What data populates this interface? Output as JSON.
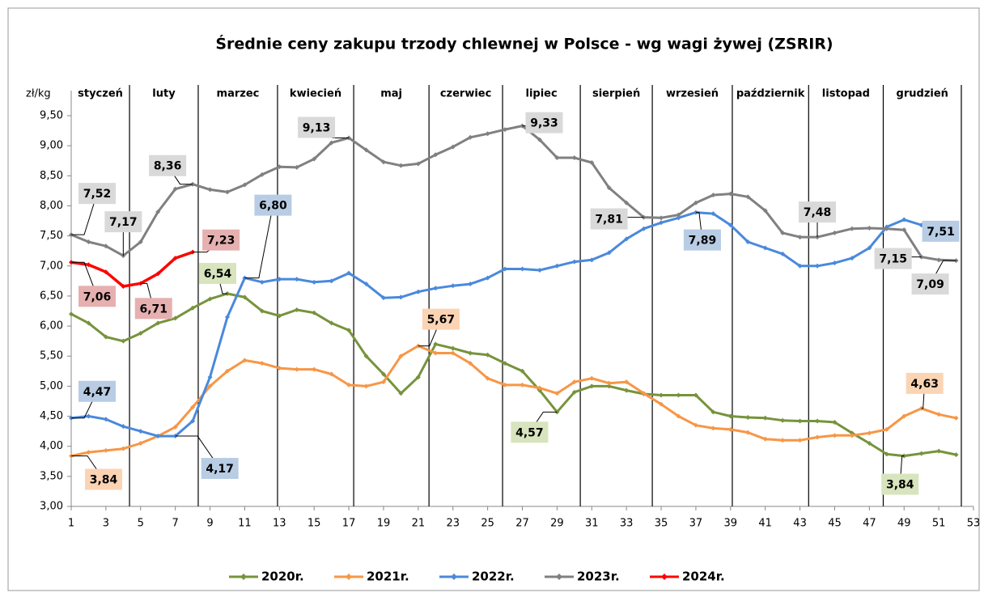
{
  "chart_data": {
    "type": "line",
    "title": "Średnie ceny zakupu trzody chlewnej w Polsce - wg wagi żywej (ZSRIR)",
    "y_label": "zł/kg",
    "months": [
      "styczeń",
      "luty",
      "marzec",
      "kwiecień",
      "maj",
      "czerwiec",
      "lipiec",
      "sierpień",
      "wrzesień",
      "październik",
      "listopad",
      "grudzień"
    ],
    "month_dividers": [
      4.36,
      8.32,
      12.89,
      17.28,
      21.62,
      25.86,
      30.34,
      34.49,
      39.1,
      43.5,
      47.8,
      52.3
    ],
    "x": [
      1,
      2,
      3,
      4,
      5,
      6,
      7,
      8,
      9,
      10,
      11,
      12,
      13,
      14,
      15,
      16,
      17,
      18,
      19,
      20,
      21,
      22,
      23,
      24,
      25,
      26,
      27,
      28,
      29,
      30,
      31,
      32,
      33,
      34,
      35,
      36,
      37,
      38,
      39,
      40,
      41,
      42,
      43,
      44,
      45,
      46,
      47,
      48,
      49,
      50,
      51,
      52
    ],
    "xlim": [
      1,
      53
    ],
    "xticks": [
      1,
      3,
      5,
      7,
      9,
      11,
      13,
      15,
      17,
      19,
      21,
      23,
      25,
      27,
      29,
      31,
      33,
      35,
      37,
      39,
      41,
      43,
      45,
      47,
      49,
      51,
      53
    ],
    "ylim": [
      3,
      9.5
    ],
    "yticks": [
      {
        "value": 3,
        "label": "3,00"
      },
      {
        "value": 3.5,
        "label": "3,50"
      },
      {
        "value": 4,
        "label": "4,00"
      },
      {
        "value": 4.5,
        "label": "4,50"
      },
      {
        "value": 5,
        "label": "5,00"
      },
      {
        "value": 5.5,
        "label": "5,50"
      },
      {
        "value": 6,
        "label": "6,00"
      },
      {
        "value": 6.5,
        "label": "6,50"
      },
      {
        "value": 7,
        "label": "7,00"
      },
      {
        "value": 7.5,
        "label": "7,50"
      },
      {
        "value": 8,
        "label": "8,00"
      },
      {
        "value": 8.5,
        "label": "8,50"
      },
      {
        "value": 9,
        "label": "9,00"
      },
      {
        "value": 9.5,
        "label": "9,50"
      }
    ],
    "legend": "bottom",
    "series": [
      {
        "name": "2020r.",
        "color": "#77933c",
        "label_bg": "#d7e4bd",
        "values": [
          6.2,
          6.05,
          5.82,
          5.75,
          5.88,
          6.05,
          6.13,
          6.3,
          6.45,
          6.54,
          6.48,
          6.25,
          6.17,
          6.27,
          6.22,
          6.05,
          5.93,
          5.5,
          5.2,
          4.88,
          5.15,
          5.7,
          5.63,
          5.55,
          5.52,
          5.38,
          5.25,
          4.93,
          4.57,
          4.9,
          5.0,
          5.0,
          4.93,
          4.87,
          4.85,
          4.85,
          4.85,
          4.57,
          4.5,
          4.48,
          4.47,
          4.43,
          4.42,
          4.42,
          4.4,
          4.22,
          4.05,
          3.87,
          3.84,
          3.88,
          3.92,
          3.86
        ],
        "value_labels": [
          null,
          null,
          null,
          null,
          null,
          null,
          null,
          null,
          null,
          "6,54",
          null,
          null,
          null,
          null,
          null,
          null,
          null,
          null,
          null,
          null,
          null,
          null,
          null,
          null,
          null,
          null,
          null,
          null,
          "4,57",
          null,
          null,
          null,
          null,
          null,
          null,
          null,
          null,
          null,
          null,
          null,
          null,
          null,
          null,
          null,
          null,
          null,
          null,
          null,
          "3,84",
          null,
          null,
          null
        ]
      },
      {
        "name": "2021r.",
        "color": "#f79646",
        "label_bg": "#fbd4b4",
        "values": [
          3.84,
          3.9,
          3.93,
          3.96,
          4.05,
          4.17,
          4.32,
          4.65,
          5.0,
          5.25,
          5.43,
          5.38,
          5.3,
          5.28,
          5.28,
          5.2,
          5.02,
          5.0,
          5.07,
          5.5,
          5.67,
          5.55,
          5.55,
          5.38,
          5.13,
          5.02,
          5.02,
          4.97,
          4.88,
          5.07,
          5.13,
          5.05,
          5.07,
          4.88,
          4.7,
          4.5,
          4.35,
          4.3,
          4.28,
          4.23,
          4.12,
          4.1,
          4.1,
          4.15,
          4.18,
          4.18,
          4.22,
          4.28,
          4.5,
          4.63,
          4.53,
          4.47
        ],
        "value_labels": [
          "3,84",
          null,
          null,
          null,
          null,
          null,
          null,
          null,
          null,
          null,
          null,
          null,
          null,
          null,
          null,
          null,
          null,
          null,
          null,
          null,
          "5,67",
          null,
          null,
          null,
          null,
          null,
          null,
          null,
          null,
          null,
          null,
          null,
          null,
          null,
          null,
          null,
          null,
          null,
          null,
          null,
          null,
          null,
          null,
          null,
          null,
          null,
          null,
          null,
          null,
          "4,63",
          null,
          null
        ]
      },
      {
        "name": "2022r.",
        "color": "#4a89dc",
        "label_bg": "#b8cce4",
        "values": [
          4.47,
          4.5,
          4.45,
          4.33,
          4.25,
          4.17,
          4.17,
          4.42,
          5.15,
          6.15,
          6.8,
          6.73,
          6.78,
          6.78,
          6.73,
          6.75,
          6.88,
          6.7,
          6.47,
          6.48,
          6.57,
          6.63,
          6.67,
          6.7,
          6.8,
          6.95,
          6.95,
          6.93,
          7.0,
          7.07,
          7.1,
          7.22,
          7.45,
          7.62,
          7.72,
          7.8,
          7.89,
          7.87,
          7.68,
          7.4,
          7.3,
          7.2,
          7.0,
          7.0,
          7.05,
          7.13,
          7.3,
          7.65,
          7.77,
          7.68,
          7.51,
          7.51
        ],
        "value_labels": [
          "4,47",
          null,
          null,
          null,
          null,
          null,
          "4,17",
          null,
          null,
          null,
          "6,80",
          null,
          null,
          null,
          null,
          null,
          null,
          null,
          null,
          null,
          null,
          null,
          null,
          null,
          null,
          null,
          null,
          null,
          null,
          null,
          null,
          null,
          null,
          null,
          null,
          null,
          "7,89",
          null,
          null,
          null,
          null,
          null,
          null,
          null,
          null,
          null,
          null,
          null,
          null,
          null,
          null,
          "7,51"
        ]
      },
      {
        "name": "2023r.",
        "color": "#808080",
        "label_bg": "#d9d9d9",
        "values": [
          7.52,
          7.4,
          7.33,
          7.17,
          7.4,
          7.9,
          8.28,
          8.36,
          8.27,
          8.23,
          8.35,
          8.52,
          8.65,
          8.64,
          8.78,
          9.05,
          9.13,
          8.93,
          8.73,
          8.67,
          8.7,
          8.85,
          8.98,
          9.14,
          9.2,
          9.27,
          9.33,
          9.1,
          8.8,
          8.8,
          8.72,
          8.3,
          8.05,
          7.81,
          7.8,
          7.85,
          8.05,
          8.18,
          8.2,
          8.15,
          7.92,
          7.55,
          7.48,
          7.48,
          7.55,
          7.62,
          7.63,
          7.62,
          7.6,
          7.15,
          7.1,
          7.09
        ],
        "value_labels": [
          "7,52",
          null,
          null,
          "7,17",
          null,
          null,
          null,
          "8,36",
          null,
          null,
          null,
          null,
          null,
          null,
          null,
          null,
          "9,13",
          null,
          null,
          null,
          null,
          null,
          null,
          null,
          null,
          null,
          "9,33",
          null,
          null,
          null,
          null,
          null,
          null,
          "7,81",
          null,
          null,
          null,
          null,
          null,
          null,
          null,
          null,
          null,
          "7,48",
          null,
          null,
          null,
          null,
          null,
          "7,15",
          null,
          "7,09"
        ]
      },
      {
        "name": "2024r.",
        "color": "#ff0000",
        "label_bg": "#e6b0b0",
        "values": [
          7.06,
          7.02,
          6.9,
          6.66,
          6.71,
          6.87,
          7.13,
          7.23,
          null,
          null,
          null,
          null,
          null,
          null,
          null,
          null,
          null,
          null,
          null,
          null,
          null,
          null,
          null,
          null,
          null,
          null,
          null,
          null,
          null,
          null,
          null,
          null,
          null,
          null,
          null,
          null,
          null,
          null,
          null,
          null,
          null,
          null,
          null,
          null,
          null,
          null,
          null,
          null,
          null,
          null,
          null,
          null
        ],
        "value_labels": [
          "7,06",
          null,
          null,
          null,
          "6,71",
          null,
          null,
          "7,23",
          null,
          null,
          null,
          null,
          null,
          null,
          null,
          null,
          null,
          null,
          null,
          null,
          null,
          null,
          null,
          null,
          null,
          null,
          null,
          null,
          null,
          null,
          null,
          null,
          null,
          null,
          null,
          null,
          null,
          null,
          null,
          null,
          null,
          null,
          null,
          null,
          null,
          null,
          null,
          null,
          null,
          null,
          null,
          null
        ]
      }
    ]
  }
}
